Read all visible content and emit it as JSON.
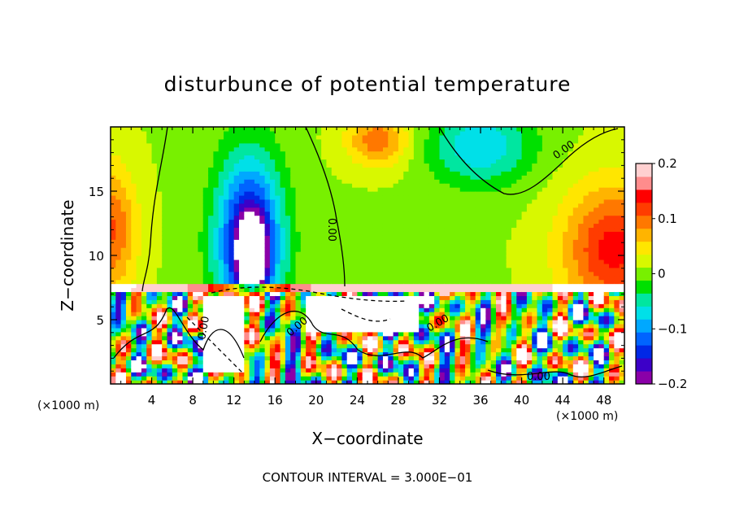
{
  "chart_data": {
    "type": "heatmap",
    "title": "disturbunce of potential temperature",
    "xlabel": "X−coordinate",
    "ylabel": "Z−coordinate",
    "x_unit": "(×1000 m)",
    "y_unit": "(×1000 m)",
    "xlim": [
      0,
      50
    ],
    "ylim": [
      0,
      20
    ],
    "x_ticks": [
      4,
      8,
      12,
      16,
      20,
      24,
      28,
      32,
      36,
      40,
      44,
      48
    ],
    "y_ticks": [
      5,
      10,
      15
    ],
    "colorbar": {
      "range": [
        -0.2,
        0.2
      ],
      "ticks": [
        {
          "value": 0.2,
          "label": "0.2"
        },
        {
          "value": 0.1,
          "label": "0.1"
        },
        {
          "value": 0,
          "label": "0"
        },
        {
          "value": -0.1,
          "label": "−0.1"
        },
        {
          "value": -0.2,
          "label": "−0.2"
        }
      ],
      "colors": [
        "#8a00a8",
        "#3c00c8",
        "#0028e6",
        "#0064ff",
        "#00a8ff",
        "#00e0e8",
        "#00e6a0",
        "#00e000",
        "#78f000",
        "#d8f800",
        "#ffe600",
        "#ffb400",
        "#ff7800",
        "#ff3c00",
        "#ff0000",
        "#ff8c8c",
        "#ffd0d0"
      ]
    },
    "contour_labels": [
      "0.00",
      "0.00",
      "0.00",
      "0.00",
      "0.00",
      "0.00"
    ],
    "contour_interval_text": "CONTOUR INTERVAL = 3.000E−01",
    "features": [
      {
        "x": 13.5,
        "z": 11,
        "value": -0.2,
        "rx": 3.2,
        "rz": 6.5
      },
      {
        "x": 13.8,
        "z": 10,
        "value": -0.25,
        "rx": 1.2,
        "rz": 2.5
      },
      {
        "x": 36,
        "z": 18.5,
        "value": -0.09,
        "rx": 5,
        "rz": 3
      },
      {
        "x": 49,
        "z": 10.5,
        "value": 0.13,
        "rx": 5,
        "rz": 5
      },
      {
        "x": 0,
        "z": 12,
        "value": 0.1,
        "rx": 2.5,
        "rz": 5
      },
      {
        "x": 26,
        "z": 19,
        "value": 0.09,
        "rx": 3,
        "rz": 2
      }
    ]
  }
}
